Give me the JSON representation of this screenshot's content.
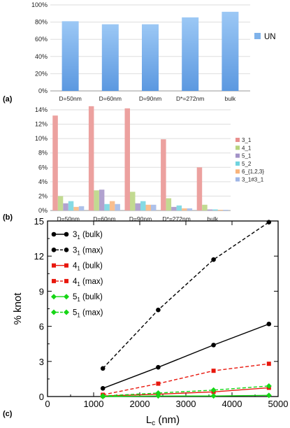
{
  "chart_data": [
    {
      "panel": "(a)",
      "type": "bar",
      "categories": [
        "D=50nm",
        "D=60nm",
        "D=90nm",
        "D*=272nm",
        "bulk"
      ],
      "series": [
        {
          "name": "UN",
          "values": [
            81,
            77.5,
            77.5,
            85.5,
            92
          ],
          "color": "#7fb2ea"
        }
      ],
      "ylim": [
        0,
        100
      ],
      "yticks": [
        0,
        20,
        40,
        60,
        80,
        100
      ],
      "ytick_labels": [
        "0%",
        "20%",
        "40%",
        "60%",
        "80%",
        "100%"
      ],
      "grid": "horizontal",
      "legend": "right"
    },
    {
      "panel": "(b)",
      "type": "bar",
      "categories": [
        "D=50nm",
        "D=60nm",
        "D=90nm",
        "D*=272nm",
        "bulk"
      ],
      "series": [
        {
          "name": "3_1",
          "values": [
            13.2,
            14.5,
            14.2,
            9.9,
            6.0
          ],
          "color": "#e9908e"
        },
        {
          "name": "4_1",
          "values": [
            2.0,
            2.8,
            2.6,
            1.7,
            0.8
          ],
          "color": "#b7d37e"
        },
        {
          "name": "5_1",
          "values": [
            1.0,
            2.9,
            1.0,
            0.5,
            0.15
          ],
          "color": "#a392c7"
        },
        {
          "name": "5_2",
          "values": [
            1.3,
            0.9,
            1.3,
            0.7,
            0.15
          ],
          "color": "#6fd3df"
        },
        {
          "name": "6_{1,2,3}",
          "values": [
            0.5,
            1.3,
            0.8,
            0.3,
            0.1
          ],
          "color": "#f8b47b"
        },
        {
          "name": "3_1#3_1",
          "values": [
            0.6,
            0.9,
            0.8,
            0.3,
            0.1
          ],
          "color": "#9fb6e6"
        }
      ],
      "ylim": [
        0,
        14
      ],
      "yticks": [
        0,
        2,
        4,
        6,
        8,
        10,
        12,
        14
      ],
      "ytick_labels": [
        "0%",
        "2%",
        "4%",
        "6%",
        "8%",
        "10%",
        "12%",
        "14%"
      ],
      "grid": "horizontal",
      "legend": "right"
    },
    {
      "panel": "(c)",
      "type": "line",
      "xlabel_main": "L",
      "xlabel_sub": "c",
      "xlabel_unit": " (nm)",
      "ylabel": "% knot",
      "xlim": [
        0,
        5000
      ],
      "ylim": [
        0,
        15
      ],
      "xticks": [
        0,
        1000,
        2000,
        3000,
        4000,
        5000
      ],
      "yticks": [
        0,
        3,
        6,
        9,
        12,
        15
      ],
      "series": [
        {
          "knot": "3",
          "sub": "1",
          "tag": " (bulk)",
          "color": "#000000",
          "marker": "circle",
          "dashed": false,
          "x": [
            1200,
            2400,
            3600,
            4800
          ],
          "y": [
            0.7,
            2.5,
            4.4,
            6.2
          ]
        },
        {
          "knot": "3",
          "sub": "1",
          "tag": " (max)",
          "color": "#000000",
          "marker": "circle",
          "dashed": true,
          "x": [
            1200,
            2400,
            3600,
            4800
          ],
          "y": [
            2.4,
            7.4,
            11.7,
            14.9
          ]
        },
        {
          "knot": "4",
          "sub": "1",
          "tag": " (bulk)",
          "color": "#e8170d",
          "marker": "square",
          "dashed": false,
          "x": [
            1200,
            2400,
            3600,
            4800
          ],
          "y": [
            0.05,
            0.2,
            0.4,
            0.75
          ]
        },
        {
          "knot": "4",
          "sub": "1",
          "tag": " (max)",
          "color": "#e8170d",
          "marker": "square",
          "dashed": true,
          "x": [
            1200,
            2400,
            3600,
            4800
          ],
          "y": [
            0.15,
            1.1,
            2.2,
            2.8
          ]
        },
        {
          "knot": "5",
          "sub": "1",
          "tag": " (bulk)",
          "color": "#16d616",
          "marker": "diamond",
          "dashed": false,
          "x": [
            1200,
            2400,
            3600,
            4800
          ],
          "y": [
            0.0,
            0.05,
            0.05,
            0.1
          ]
        },
        {
          "knot": "5",
          "sub": "1",
          "tag": " (max)",
          "color": "#16d616",
          "marker": "diamond",
          "dashed": true,
          "x": [
            1200,
            2400,
            3600,
            4800
          ],
          "y": [
            0.05,
            0.3,
            0.55,
            0.9
          ]
        }
      ]
    }
  ]
}
